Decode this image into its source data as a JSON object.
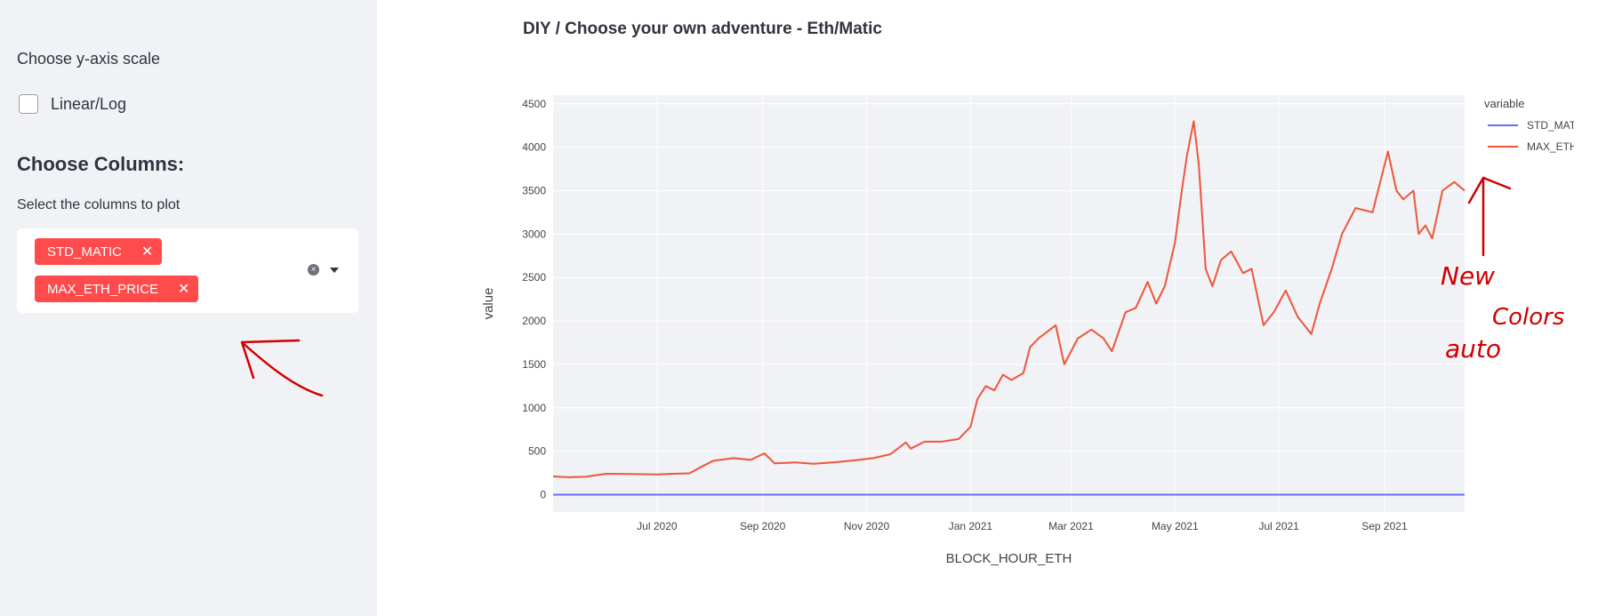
{
  "sidebar": {
    "scale_label": "Choose y-axis scale",
    "checkbox_label": "Linear/Log",
    "columns_header": "Choose Columns:",
    "select_label": "Select the columns to plot",
    "tags": [
      {
        "label": "STD_MATIC"
      },
      {
        "label": "MAX_ETH_PRICE"
      }
    ],
    "tag_remove": "✕"
  },
  "main": {
    "title": "DIY / Choose your own adventure - Eth/Matic"
  },
  "annotation": {
    "words": [
      "New",
      "Colors",
      "auto"
    ]
  },
  "colors": {
    "accent": "#ff4b4b",
    "std_matic_line": "#636efa",
    "max_eth_line": "#ef553b",
    "plot_bg": "#f0f2f6",
    "annotation": "#d00000"
  },
  "chart_data": {
    "type": "line",
    "xlabel": "BLOCK_HOUR_ETH",
    "ylabel": "value",
    "ylim": [
      -200,
      4600
    ],
    "yticks": [
      0,
      500,
      1000,
      1500,
      2000,
      2500,
      3000,
      3500,
      4000,
      4500
    ],
    "x_range": [
      "2020-05-01",
      "2021-10-18"
    ],
    "xtick_dates": [
      "2020-07-01",
      "2020-09-01",
      "2020-11-01",
      "2021-01-01",
      "2021-03-01",
      "2021-05-01",
      "2021-07-01",
      "2021-09-01"
    ],
    "xtick_labels": [
      "Jul 2020",
      "Sep 2020",
      "Nov 2020",
      "Jan 2021",
      "Mar 2021",
      "May 2021",
      "Jul 2021",
      "Sep 2021"
    ],
    "grid": true,
    "legend": {
      "title": "variable",
      "position": "top-right"
    },
    "series": [
      {
        "name": "STD_MATIC",
        "points": [
          [
            "2020-05-01",
            0
          ],
          [
            "2021-10-18",
            0
          ]
        ]
      },
      {
        "name": "MAX_ETH_PRICE",
        "points": [
          [
            "2020-05-01",
            210
          ],
          [
            "2020-05-10",
            200
          ],
          [
            "2020-05-20",
            205
          ],
          [
            "2020-06-01",
            240
          ],
          [
            "2020-06-15",
            238
          ],
          [
            "2020-07-01",
            232
          ],
          [
            "2020-07-10",
            240
          ],
          [
            "2020-07-20",
            245
          ],
          [
            "2020-07-27",
            320
          ],
          [
            "2020-08-03",
            390
          ],
          [
            "2020-08-15",
            420
          ],
          [
            "2020-08-25",
            400
          ],
          [
            "2020-09-02",
            475
          ],
          [
            "2020-09-08",
            360
          ],
          [
            "2020-09-20",
            370
          ],
          [
            "2020-10-01",
            355
          ],
          [
            "2020-10-15",
            375
          ],
          [
            "2020-10-25",
            395
          ],
          [
            "2020-11-05",
            420
          ],
          [
            "2020-11-15",
            465
          ],
          [
            "2020-11-24",
            600
          ],
          [
            "2020-11-27",
            530
          ],
          [
            "2020-12-05",
            610
          ],
          [
            "2020-12-15",
            610
          ],
          [
            "2020-12-25",
            640
          ],
          [
            "2021-01-01",
            780
          ],
          [
            "2021-01-05",
            1100
          ],
          [
            "2021-01-10",
            1250
          ],
          [
            "2021-01-15",
            1200
          ],
          [
            "2021-01-20",
            1380
          ],
          [
            "2021-01-25",
            1320
          ],
          [
            "2021-02-01",
            1400
          ],
          [
            "2021-02-05",
            1700
          ],
          [
            "2021-02-10",
            1800
          ],
          [
            "2021-02-20",
            1950
          ],
          [
            "2021-02-25",
            1500
          ],
          [
            "2021-03-05",
            1800
          ],
          [
            "2021-03-13",
            1900
          ],
          [
            "2021-03-20",
            1800
          ],
          [
            "2021-03-25",
            1650
          ],
          [
            "2021-04-02",
            2100
          ],
          [
            "2021-04-08",
            2150
          ],
          [
            "2021-04-15",
            2450
          ],
          [
            "2021-04-20",
            2200
          ],
          [
            "2021-04-25",
            2400
          ],
          [
            "2021-05-01",
            2900
          ],
          [
            "2021-05-05",
            3500
          ],
          [
            "2021-05-08",
            3900
          ],
          [
            "2021-05-12",
            4300
          ],
          [
            "2021-05-15",
            3800
          ],
          [
            "2021-05-19",
            2600
          ],
          [
            "2021-05-23",
            2400
          ],
          [
            "2021-05-28",
            2700
          ],
          [
            "2021-06-03",
            2800
          ],
          [
            "2021-06-10",
            2550
          ],
          [
            "2021-06-15",
            2600
          ],
          [
            "2021-06-22",
            1950
          ],
          [
            "2021-06-28",
            2100
          ],
          [
            "2021-07-05",
            2350
          ],
          [
            "2021-07-12",
            2050
          ],
          [
            "2021-07-20",
            1850
          ],
          [
            "2021-07-25",
            2200
          ],
          [
            "2021-08-01",
            2600
          ],
          [
            "2021-08-07",
            3000
          ],
          [
            "2021-08-15",
            3300
          ],
          [
            "2021-08-25",
            3250
          ],
          [
            "2021-09-03",
            3950
          ],
          [
            "2021-09-08",
            3500
          ],
          [
            "2021-09-12",
            3400
          ],
          [
            "2021-09-18",
            3500
          ],
          [
            "2021-09-21",
            3000
          ],
          [
            "2021-09-25",
            3100
          ],
          [
            "2021-09-29",
            2950
          ],
          [
            "2021-10-05",
            3500
          ],
          [
            "2021-10-12",
            3600
          ],
          [
            "2021-10-18",
            3500
          ]
        ]
      }
    ]
  }
}
